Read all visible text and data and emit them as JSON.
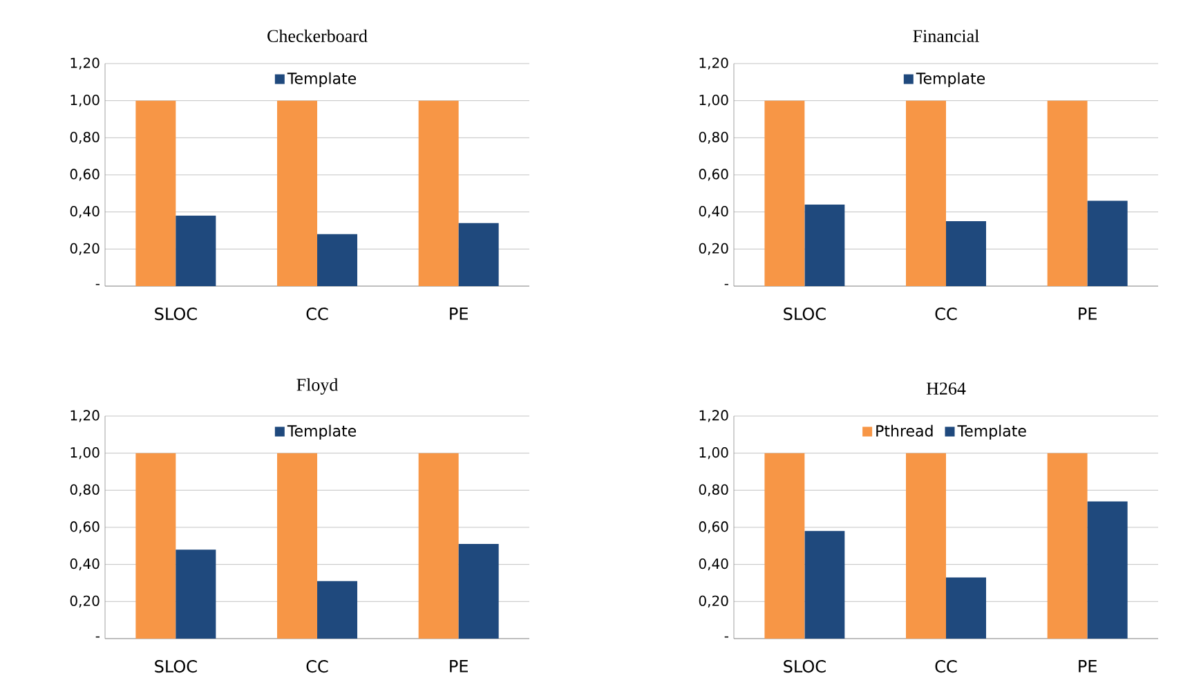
{
  "chart_data": [
    {
      "type": "bar",
      "title": "Checkerboard",
      "categories": [
        "SLOC",
        "CC",
        "PE"
      ],
      "series": [
        {
          "color": "#f79646",
          "values": [
            1.0,
            1.0,
            1.0
          ]
        },
        {
          "name": "Template",
          "color": "#1f497d",
          "values": [
            0.38,
            0.28,
            0.34
          ]
        }
      ],
      "ylim": [
        0,
        1.2
      ],
      "yticks": [
        {
          "value": 0,
          "label": "-"
        },
        {
          "value": 0.2,
          "label": "0,20"
        },
        {
          "value": 0.4,
          "label": "0,40"
        },
        {
          "value": 0.6,
          "label": "0,60"
        },
        {
          "value": 0.8,
          "label": "0,80"
        },
        {
          "value": 1.0,
          "label": "1,00"
        },
        {
          "value": 1.2,
          "label": "1,20"
        }
      ],
      "grid": "y",
      "legend": "top"
    },
    {
      "type": "bar",
      "title": "Financial",
      "categories": [
        "SLOC",
        "CC",
        "PE"
      ],
      "series": [
        {
          "color": "#f79646",
          "values": [
            1.0,
            1.0,
            1.0
          ]
        },
        {
          "name": "Template",
          "color": "#1f497d",
          "values": [
            0.44,
            0.35,
            0.46
          ]
        }
      ],
      "ylim": [
        0,
        1.2
      ],
      "yticks": [
        {
          "value": 0,
          "label": "-"
        },
        {
          "value": 0.2,
          "label": "0,20"
        },
        {
          "value": 0.4,
          "label": "0,40"
        },
        {
          "value": 0.6,
          "label": "0,60"
        },
        {
          "value": 0.8,
          "label": "0,80"
        },
        {
          "value": 1.0,
          "label": "1,00"
        },
        {
          "value": 1.2,
          "label": "1,20"
        }
      ],
      "grid": "y",
      "legend": "top"
    },
    {
      "type": "bar",
      "title": "Floyd",
      "categories": [
        "SLOC",
        "CC",
        "PE"
      ],
      "series": [
        {
          "color": "#f79646",
          "values": [
            1.0,
            1.0,
            1.0
          ]
        },
        {
          "name": "Template",
          "color": "#1f497d",
          "values": [
            0.48,
            0.31,
            0.51
          ]
        }
      ],
      "ylim": [
        0,
        1.2
      ],
      "yticks": [
        {
          "value": 0,
          "label": "-"
        },
        {
          "value": 0.2,
          "label": "0,20"
        },
        {
          "value": 0.4,
          "label": "0,40"
        },
        {
          "value": 0.6,
          "label": "0,60"
        },
        {
          "value": 0.8,
          "label": "0,80"
        },
        {
          "value": 1.0,
          "label": "1,00"
        },
        {
          "value": 1.2,
          "label": "1,20"
        }
      ],
      "grid": "y",
      "legend": "top"
    },
    {
      "type": "bar",
      "title": "H264",
      "categories": [
        "SLOC",
        "CC",
        "PE"
      ],
      "series": [
        {
          "name": "Pthread",
          "color": "#f79646",
          "values": [
            1.0,
            1.0,
            1.0
          ]
        },
        {
          "name": "Template",
          "color": "#1f497d",
          "values": [
            0.58,
            0.33,
            0.74
          ]
        }
      ],
      "ylim": [
        0,
        1.2
      ],
      "yticks": [
        {
          "value": 0,
          "label": "-"
        },
        {
          "value": 0.2,
          "label": "0,20"
        },
        {
          "value": 0.4,
          "label": "0,40"
        },
        {
          "value": 0.6,
          "label": "0,60"
        },
        {
          "value": 0.8,
          "label": "0,80"
        },
        {
          "value": 1.0,
          "label": "1,00"
        },
        {
          "value": 1.2,
          "label": "1,20"
        }
      ],
      "grid": "y",
      "legend": "top"
    }
  ]
}
